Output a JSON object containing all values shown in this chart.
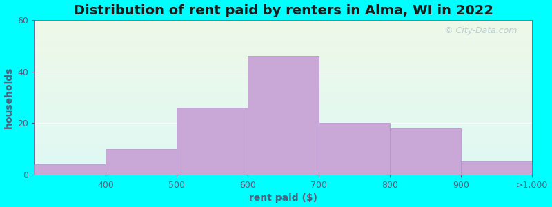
{
  "title": "Distribution of rent paid by renters in Alma, WI in 2022",
  "xlabel": "rent paid ($)",
  "ylabel": "households",
  "x_tick_labels": [
    "400",
    "500",
    "600",
    "700",
    "800",
    "900",
    ">1,000"
  ],
  "values": [
    4,
    10,
    26,
    46,
    20,
    18,
    5
  ],
  "bar_color": "#c9a8d8",
  "bar_edge_color": "#b090c8",
  "bar_linewidth": 0.5,
  "ylim": [
    0,
    60
  ],
  "yticks": [
    0,
    20,
    40,
    60
  ],
  "background_color": "#00ffff",
  "plot_bg_top": "#eef8e8",
  "plot_bg_bottom": "#dff8f4",
  "title_fontsize": 14,
  "axis_label_fontsize": 10,
  "tick_fontsize": 9,
  "title_color": "#1a1a1a",
  "axis_label_color": "#5a5a7a",
  "tick_color": "#5a5a7a",
  "watermark": "City-Data.com",
  "watermark_color": "#b0c8d0",
  "watermark_fontsize": 9
}
